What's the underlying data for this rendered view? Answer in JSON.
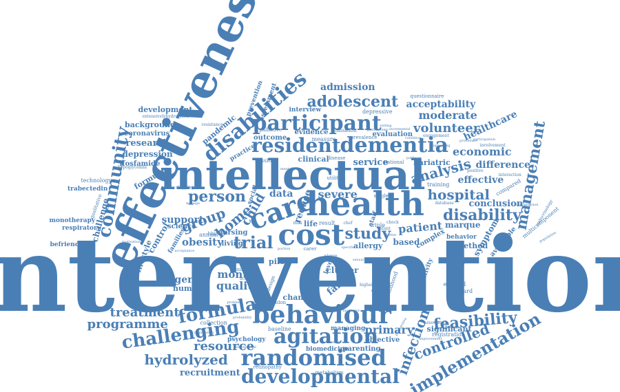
{
  "color": "#4a7fb5",
  "cloud": {
    "intervention": "intervention",
    "effectiveness": "effectiveness",
    "intellectual": "intellectual",
    "health": "health",
    "care": "care",
    "cost": "cost",
    "behaviour": "behaviour",
    "developmental": "developmental",
    "randomised": "randomised",
    "agitation": "agitation",
    "challenging": "challenging",
    "dementia": "dementia",
    "resident": "resident",
    "participant": "participant",
    "disabilities": "disabilities",
    "community": "community",
    "formula": "formula",
    "trial": "trial",
    "study": "study",
    "management": "management",
    "implementation": "implementation",
    "feasibility": "feasibility",
    "disability": "disability",
    "hospital": "hospital",
    "analysis": "analysis",
    "person": "person",
    "home": "home",
    "group": "group",
    "adolescent": "adolescent",
    "controlled": "controlled",
    "infection": "infection",
    "hydrolyzed": "hydrolyzed",
    "treatment": "treatment",
    "programme": "programme",
    "resource": "resource",
    "recruitment": "recruitment",
    "volunteer": "volunteer",
    "economic": "economic",
    "moderate": "moderate",
    "acceptability": "acceptability",
    "admission": "admission",
    "healthcare": "healthcare",
    "difference": "difference",
    "effective": "effective",
    "conclusion": "conclusion",
    "patient": "patient",
    "severe": "severe",
    "primary": "primary",
    "quality": "quality",
    "month": "month",
    "surgery": "surgery",
    "obesity": "obesity",
    "support": "support",
    "service": "service",
    "reduce": "reduce",
    "data": "data",
    "research": "research",
    "depression": "depression",
    "background": "background",
    "development": "development",
    "coronavirus": "coronavirus",
    "ifosfamide": "ifosfamide",
    "formulae": "formulae",
    "pandemic": "pandemic",
    "child": "child",
    "family": "family",
    "parent": "parent",
    "symptom": "symptom",
    "method": "method",
    "based": "based",
    "allergy": "allergy",
    "marque": "marque",
    "bariatric": "bariatric",
    "significant": "significant",
    "lifestyle": "lifestyle",
    "control": "control",
    "challenge": "challenge",
    "monotherapy": "monotherapy",
    "befriending": "befriending",
    "respiratory": "respiratory",
    "technology": "technology",
    "trabectedin": "trabectedin",
    "living": "living",
    "evaluation": "evaluation",
    "evidence": "evidence",
    "outcome": "outcome",
    "clinical": "clinical",
    "prevention": "prevention",
    "assessment": "assessment",
    "interview": "interview",
    "depressive": "depressive",
    "questionnaire": "questionnaire",
    "engagement": "engagement",
    "measure": "measure",
    "session": "session",
    "national": "national",
    "cluster": "cluster",
    "pilot": "pilot",
    "change": "change",
    "number": "number",
    "managing": "managing",
    "objective": "objective",
    "parenting": "parenting",
    "biomedicine": "biomedicine",
    "psychology": "psychology",
    "collection": "collection",
    "baseline": "baseline",
    "annual": "annual",
    "nursing": "nursing",
    "science": "science",
    "families": "families",
    "complex": "complex",
    "behavior": "behavior",
    "avoidable": "avoidable",
    "compared": "compared",
    "training": "training",
    "england": "england",
    "standard": "standard",
    "sensitivity": "sensitivity",
    "childhood": "childhood",
    "level": "level",
    "life": "life",
    "result": "result",
    "triple": "triple",
    "utility": "utility",
    "disease": "disease",
    "prevalence": "prevalence",
    "utilisation": "utilisation",
    "resistance": "resistance",
    "palliative": "palliative",
    "practice": "practice",
    "social": "social",
    "single": "single",
    "staff": "staff",
    "metabolism": "metabolism",
    "retinopathy": "retinopathy",
    "london": "london",
    "design": "design",
    "detection": "detection",
    "public": "public",
    "experienced": "experienced",
    "improvement": "improvement",
    "multicomponent": "multicomponent",
    "involvement": "involvement",
    "positive": "positive",
    "participation": "participation",
    "condition": "condition",
    "registration": "registration",
    "procedure": "procedure",
    "stepping": "stepping",
    "manage": "manage",
    "motivational": "motivational",
    "carer": "carer",
    "setting": "setting",
    "infant": "infant",
    "check": "check",
    "score": "score",
    "higher": "higher",
    "qualitative": "qualitative",
    "longitudinal": "longitudinal",
    "hypoglycemia": "hypoglycemia",
    "extensivelyhydrolyzed": "extensivelyhydrolyzed",
    "infection2": "infection",
    "interaction": "interaction",
    "endocrinology": "endocrinology",
    "database": "database",
    "population": "population",
    "transmission": "transmission",
    "associated": "associated",
    "incremental": "incremental",
    "gastrostomy": "gastrostomy",
    "pathway": "pathway",
    "supporting": "supporting",
    "eligible": "eligible",
    "checklist": "checklist",
    "raising": "raising",
    "problem": "problem",
    "probability": "probability",
    "implication": "implication",
    "nonessential": "nonessential",
    "urinary": "urinary",
    "blinded": "blinded",
    "facilitator": "facilitator",
    "bbirch": "bbirch",
    "acceptance": "acceptance",
    "portion": "portion",
    "sexual": "sexual",
    "specific": "specific",
    "wheeze": "wheeze",
    "better": "better",
    "prospective": "prospective",
    "milk": "milk",
    "chef": "chef",
    "mentally": "mentally"
  }
}
